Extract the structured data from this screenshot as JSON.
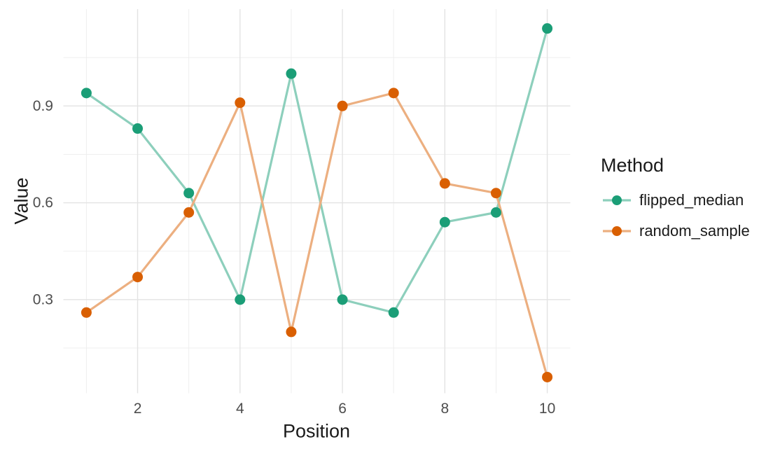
{
  "chart_data": {
    "type": "line",
    "title": "",
    "xlabel": "Position",
    "ylabel": "Value",
    "legend_title": "Method",
    "legend_position": "right",
    "grid": true,
    "x": [
      1,
      2,
      3,
      4,
      5,
      6,
      7,
      8,
      9,
      10
    ],
    "series": [
      {
        "name": "flipped_median",
        "values": [
          0.94,
          0.83,
          0.63,
          0.3,
          1.0,
          0.3,
          0.26,
          0.54,
          0.57,
          1.14
        ],
        "point_color": "#1B9E77",
        "line_color": "#8DCFBC"
      },
      {
        "name": "random_sample",
        "values": [
          0.26,
          0.37,
          0.57,
          0.91,
          0.2,
          0.9,
          0.94,
          0.66,
          0.63,
          0.06
        ],
        "point_color": "#D95F02",
        "line_color": "#ECAF80"
      }
    ],
    "x_ticks": [
      2,
      4,
      6,
      8,
      10
    ],
    "x_minor_breaks": [
      1,
      3,
      5,
      7,
      9
    ],
    "y_ticks": [
      0.3,
      0.6,
      0.9
    ],
    "y_minor_breaks": [
      0.15,
      0.45,
      0.75,
      1.05
    ],
    "xlim": [
      0.55,
      10.45
    ],
    "ylim": [
      0.01,
      1.2
    ]
  },
  "colors": {
    "background": "#FFFFFF",
    "grid_major": "#E3E3E3",
    "grid_minor": "#EDEDED",
    "tick_label": "#4D4D4D",
    "axis_title": "#1A1A1A",
    "legend_text": "#1A1A1A"
  }
}
